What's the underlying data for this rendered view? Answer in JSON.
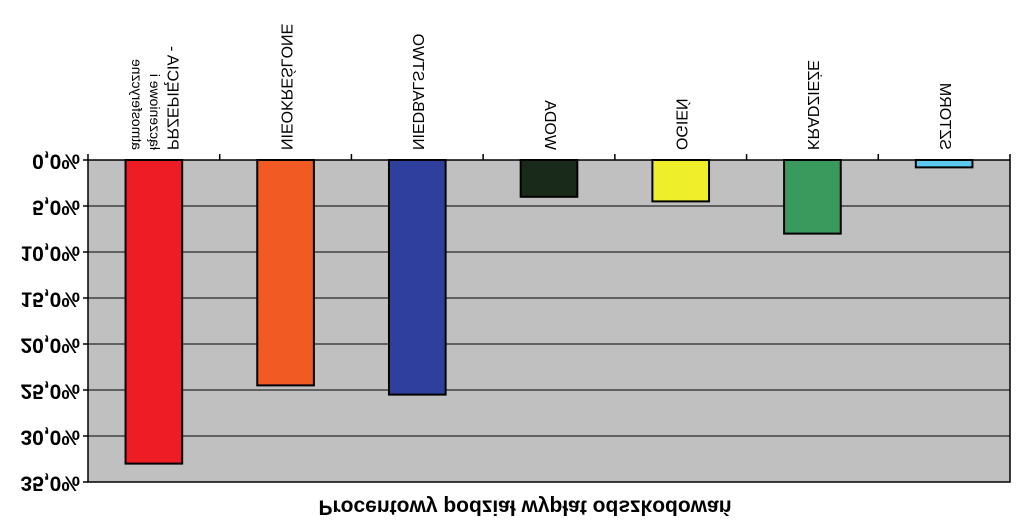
{
  "chart_data": {
    "type": "bar",
    "title": "Procentowy podział wypłat odszkodowań",
    "categories": [
      "PRZEPIĘCIA - łączeniowe i atmosferyczne",
      "NIEOKREŚLONE",
      "NIEDBALSTWO",
      "WODA",
      "OGIEŃ",
      "KRADZIEŻE",
      "SZTORM"
    ],
    "category_lines": [
      [
        "PRZEPIĘCIA -",
        "łączeniowe i",
        "atmosferyczne"
      ],
      [
        "NIEOKREŚLONE"
      ],
      [
        "NIEDBALSTWO"
      ],
      [
        "WODA"
      ],
      [
        "OGIEŃ"
      ],
      [
        "KRADZIEŻE"
      ],
      [
        "SZTORM"
      ]
    ],
    "values": [
      33.0,
      24.5,
      25.5,
      4.0,
      4.5,
      8.0,
      0.8
    ],
    "ylim": [
      0,
      35
    ],
    "yticks": [
      "0,0%",
      "5,0%",
      "10,0%",
      "15,0%",
      "20,0%",
      "25,0%",
      "30,0%",
      "35,0%"
    ],
    "grid": true,
    "legend": "none",
    "colors": [
      "#ee1c25",
      "#f15a22",
      "#2e3f9e",
      "#1a2a1a",
      "#eeee2a",
      "#3a9a5e",
      "#5bc8f0"
    ],
    "plot_background": "#c0c0c0"
  }
}
